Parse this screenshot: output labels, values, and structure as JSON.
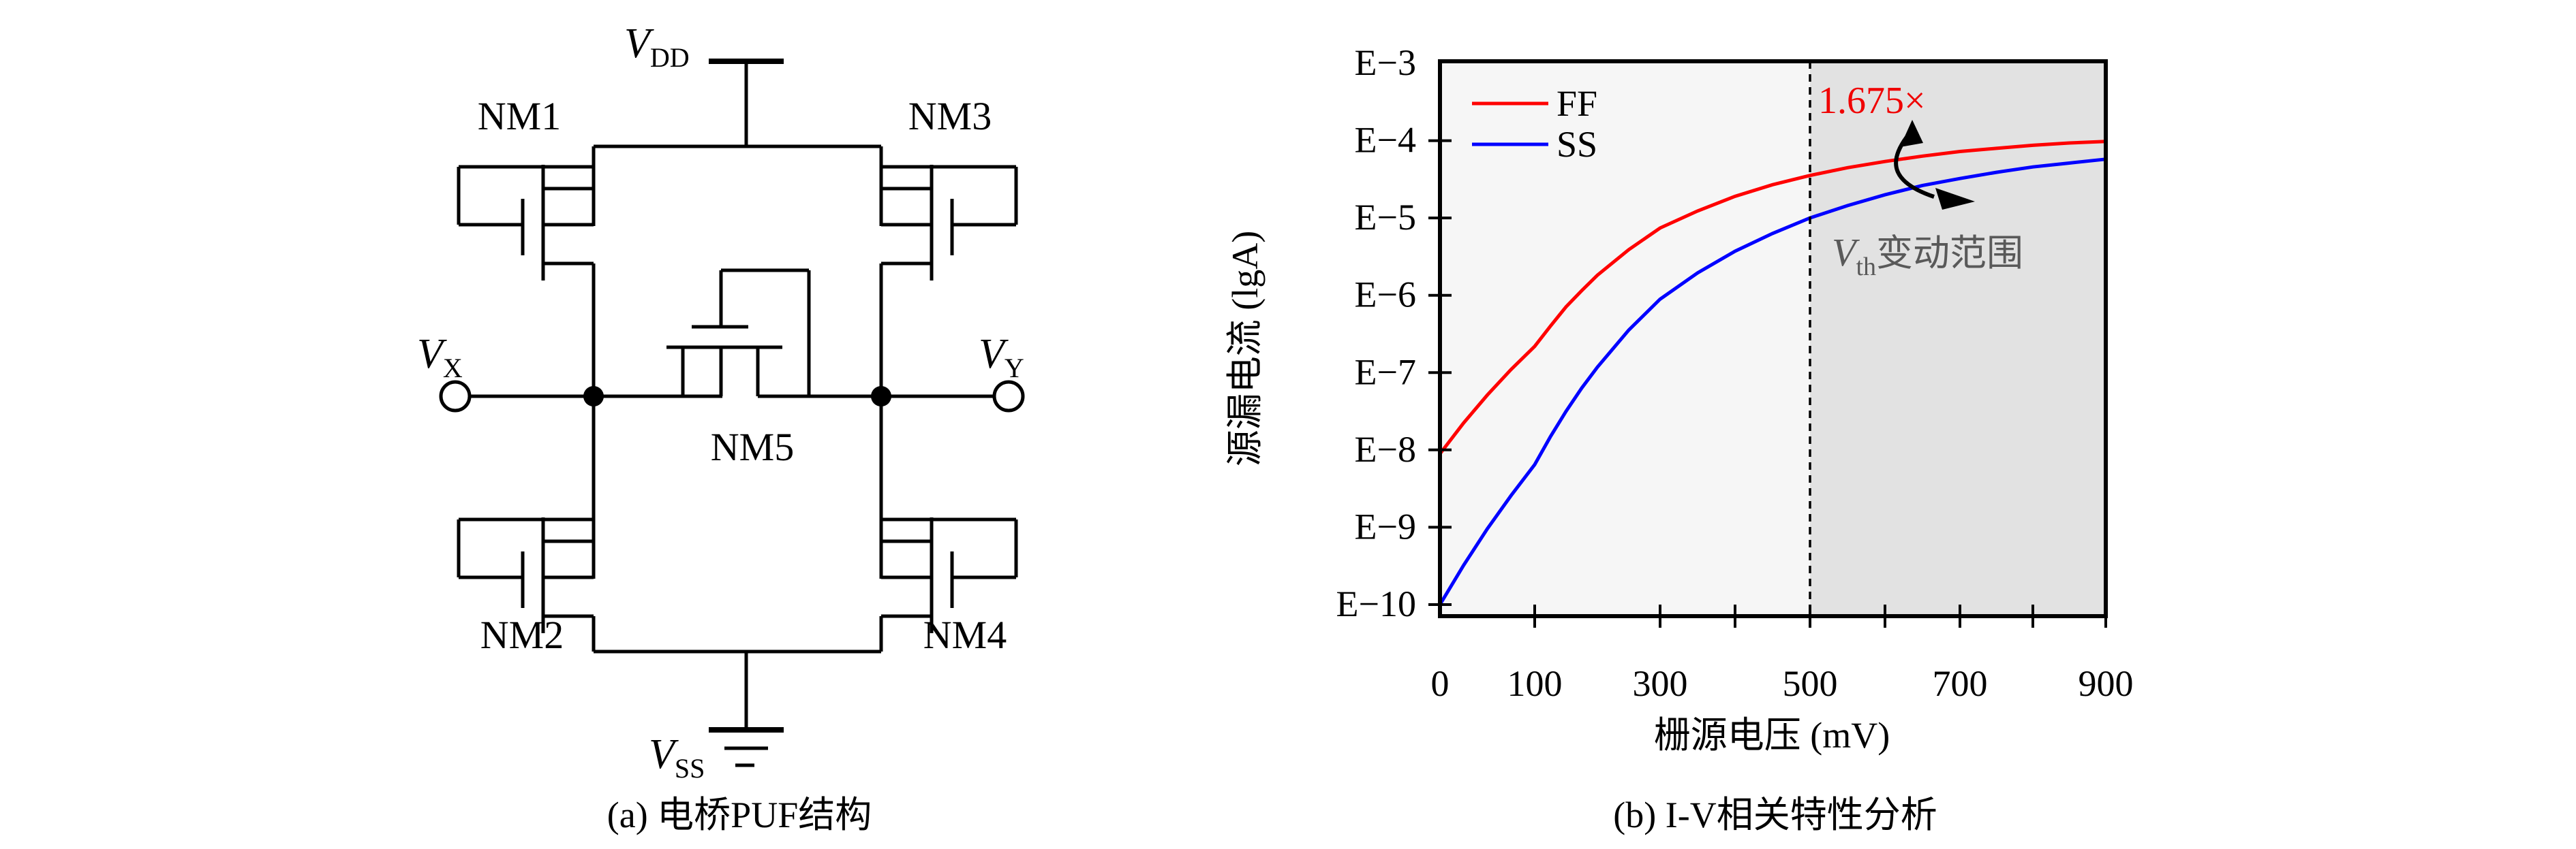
{
  "panel_a": {
    "caption": "(a) 电桥PUF结构",
    "vdd": {
      "main": "V",
      "sub": "DD"
    },
    "vss": {
      "main": "V",
      "sub": "SS"
    },
    "vx": {
      "main": "V",
      "sub": "X"
    },
    "vy": {
      "main": "V",
      "sub": "Y"
    },
    "nm1": "NM1",
    "nm2": "NM2",
    "nm3": "NM3",
    "nm4": "NM4",
    "nm5": "NM5"
  },
  "panel_b": {
    "caption": "(b) I-V相关特性分析",
    "legend": [
      {
        "label": "FF",
        "color": "#ff0000"
      },
      {
        "label": "SS",
        "color": "#0000ff"
      }
    ],
    "annotation_ratio": "1.675×",
    "annotation_vth": {
      "main": "V",
      "sub": "th",
      "rest": "变动范围"
    },
    "colors": {
      "left_region_bg": "#f6f6f6",
      "right_region_bg": "#e2e2e2",
      "annotation_gray": "#595959",
      "ff_red": "#ff0000",
      "ss_blue": "#0000ff"
    }
  },
  "chart_data": {
    "type": "line",
    "title": "",
    "xlabel": "栅源电压 (mV)",
    "ylabel": "源漏电流 (lgA)",
    "x_tick_labels": [
      "0",
      "100",
      "300",
      "500",
      "700",
      "900"
    ],
    "x_minor_ticks": [
      100,
      300,
      400,
      500,
      600,
      700,
      800,
      900
    ],
    "y_tick_labels": [
      "E−3",
      "E−4",
      "E−5",
      "E−6",
      "E−7",
      "E−8",
      "E−9",
      "E−10"
    ],
    "y_unit": "lgA (decades, E−3 at top to E−10 at bottom)",
    "xlim_mV": [
      0,
      900
    ],
    "ylim_decades": [
      -3,
      -10.15
    ],
    "grid": false,
    "legend_position": "upper-left-inside",
    "dashed_boundary_mV": 500,
    "shaded_region_mV": [
      500,
      900
    ],
    "series": [
      {
        "name": "FF",
        "color": "#ff0000",
        "x": [
          0,
          25,
          50,
          75,
          100,
          125,
          150,
          175,
          200,
          250,
          300,
          350,
          400,
          450,
          500,
          550,
          600,
          650,
          700,
          750,
          800,
          850,
          900
        ],
        "lg": [
          -8.05,
          -7.65,
          -7.29,
          -6.96,
          -6.66,
          -6.4,
          -6.15,
          -5.94,
          -5.74,
          -5.41,
          -5.13,
          -4.91,
          -4.72,
          -4.57,
          -4.45,
          -4.35,
          -4.27,
          -4.2,
          -4.14,
          -4.1,
          -4.06,
          -4.03,
          -4.01
        ]
      },
      {
        "name": "SS",
        "color": "#0000ff",
        "x": [
          0,
          25,
          50,
          75,
          100,
          125,
          150,
          175,
          200,
          250,
          300,
          350,
          400,
          450,
          500,
          550,
          600,
          650,
          700,
          750,
          800,
          850,
          900
        ],
        "lg": [
          -10.0,
          -9.49,
          -9.02,
          -8.59,
          -8.19,
          -7.83,
          -7.5,
          -7.2,
          -6.93,
          -6.45,
          -6.05,
          -5.71,
          -5.43,
          -5.2,
          -5.0,
          -4.84,
          -4.7,
          -4.58,
          -4.49,
          -4.41,
          -4.34,
          -4.29,
          -4.24
        ]
      }
    ],
    "annotations": [
      {
        "text": "1.675×",
        "color": "#f00000",
        "near_mV": 520,
        "near_lg": -3.5
      },
      {
        "text": "V_th变动范围",
        "color": "#595959",
        "near_mV": 540,
        "near_lg": -5.4
      }
    ]
  }
}
